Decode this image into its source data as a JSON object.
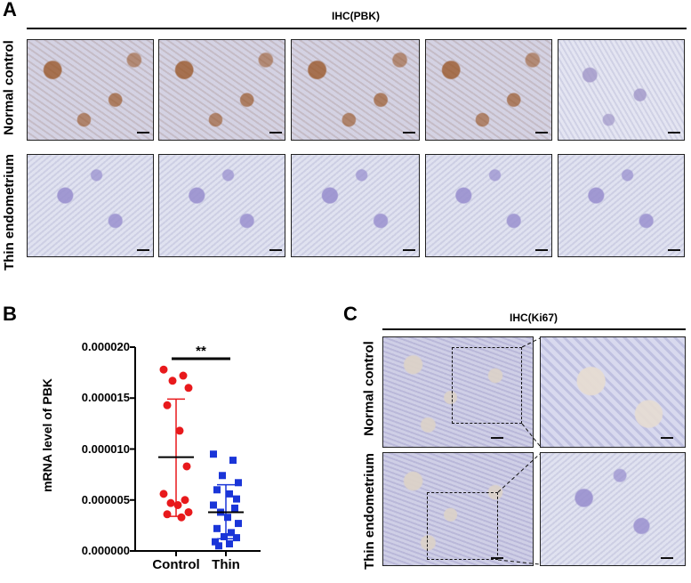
{
  "panel_a": {
    "letter": "A",
    "header": "IHC(PBK)",
    "row_labels": [
      "Normal control",
      "Thin endometrium"
    ]
  },
  "panel_b": {
    "letter": "B",
    "significance": "**"
  },
  "panel_c": {
    "letter": "C",
    "header": "IHC(Ki67)",
    "row_labels": [
      "Normal control",
      "Thin endometrium"
    ]
  },
  "chart_data": {
    "type": "scatter",
    "ylabel": "mRNA level of PBK",
    "categories": [
      "Control",
      "Thin"
    ],
    "ylim": [
      0,
      2e-05
    ],
    "yticks": [
      "0.000000",
      "0.000005",
      "0.000010",
      "0.000015",
      "0.000020"
    ],
    "ytick_values": [
      0,
      5e-06,
      1e-05,
      1.5e-05,
      2e-05
    ],
    "series": [
      {
        "category": "Control",
        "marker": "circle",
        "color": "#e8191c",
        "values": [
          1.78e-05,
          1.72e-05,
          1.67e-05,
          1.6e-05,
          1.43e-05,
          1.18e-05,
          8.3e-06,
          5.6e-06,
          5e-06,
          4.7e-06,
          4.5e-06,
          3.8e-06,
          3.6e-06,
          3.3e-06
        ],
        "mean": 9.2e-06,
        "sd_upper": 1.49e-05,
        "sd_lower": 3.4e-06
      },
      {
        "category": "Thin",
        "marker": "square",
        "color": "#1a35d8",
        "values": [
          9.5e-06,
          8.9e-06,
          7.4e-06,
          6.7e-06,
          6e-06,
          5.6e-06,
          5.1e-06,
          4.5e-06,
          4.2e-06,
          3.8e-06,
          3.3e-06,
          2.7e-06,
          2.2e-06,
          1.8e-06,
          1.4e-06,
          1.3e-06,
          9e-07,
          7e-07,
          5e-07
        ],
        "mean": 3.8e-06,
        "sd_upper": 6.5e-06,
        "sd_lower": 1.2e-06
      }
    ]
  }
}
